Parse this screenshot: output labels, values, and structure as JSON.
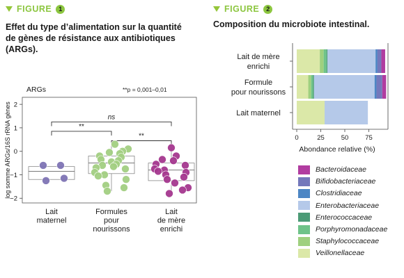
{
  "figure1": {
    "label": "FIGURE",
    "number": "1",
    "title_lines": [
      "Effet du type d’alimentation sur la quantité",
      "de gènes de résistance aux antibiotiques",
      "(ARGs)."
    ]
  },
  "figure2": {
    "label": "FIGURE",
    "number": "2",
    "title": "Composition du microbiote intestinal."
  },
  "colors": {
    "accent_green": "#8cc63f",
    "maternal": "#7f74b5",
    "formula": "#a3cf82",
    "enriched": "#a5378f",
    "Bacteroidaceae": "#b13ca0",
    "Bifidobacteriaceae": "#7478bb",
    "Clostridiaceae": "#4d86c4",
    "Enterobacteriaceae": "#b5c9e9",
    "Enterococcaceae": "#4c9b76",
    "Porphyromonadaceae": "#6fc389",
    "Staphylococcaceae": "#9fd07f",
    "Veillonellaceae": "#dbe8a8"
  },
  "chart_data": [
    {
      "type": "scatter",
      "subtitle": "ARGs",
      "ylabel": "log somme ARGs/16S rRNA gènes",
      "ylim": [
        -2.2,
        2.3
      ],
      "yticks": [
        -2,
        -1,
        0,
        1,
        2
      ],
      "annotation": "**p = 0,001–0,01",
      "groups": [
        {
          "name_lines": [
            "Lait",
            "maternel"
          ],
          "color_key": "maternal",
          "box": {
            "q1": -1.2,
            "median": -0.85,
            "q3": -0.65,
            "whisker_low": -1.2,
            "whisker_high": -0.65
          },
          "points": [
            -1.25,
            -0.6,
            -0.6,
            -1.15
          ]
        },
        {
          "name_lines": [
            "Formules",
            "pour",
            "nourissons"
          ],
          "color_key": "formula",
          "box": {
            "q1": -0.95,
            "median": -0.5,
            "q3": -0.2,
            "whisker_low": -1.7,
            "whisker_high": 0.3
          },
          "points": [
            0.3,
            0.1,
            0.0,
            -0.05,
            -0.1,
            -0.2,
            -0.25,
            -0.35,
            -0.4,
            -0.45,
            -0.55,
            -0.6,
            -0.65,
            -0.7,
            -0.75,
            -0.9,
            -1.0,
            -1.05,
            -1.2,
            -1.45,
            -1.55,
            -1.7
          ]
        },
        {
          "name_lines": [
            "Lait",
            "de mère",
            "enrichi"
          ],
          "color_key": "enriched",
          "box": {
            "q1": -1.25,
            "median": -0.8,
            "q3": -0.5,
            "whisker_low": -1.75,
            "whisker_high": 0.15
          },
          "points": [
            0.15,
            -0.2,
            -0.35,
            -0.4,
            -0.55,
            -0.6,
            -0.75,
            -0.8,
            -0.85,
            -0.9,
            -1.0,
            -1.1,
            -1.2,
            -1.35,
            -1.55,
            -1.65,
            -1.8
          ]
        }
      ],
      "comparisons": [
        {
          "from": 0,
          "to": 2,
          "label": "ns",
          "level": 1.25
        },
        {
          "from": 0,
          "to": 1,
          "label": "**",
          "level": 0.85
        },
        {
          "from": 1,
          "to": 2,
          "label": "**",
          "level": 0.45
        }
      ]
    },
    {
      "type": "bar",
      "orientation": "horizontal",
      "stacked": true,
      "xlabel": "Abondance relative (%)",
      "xlim": [
        0,
        100
      ],
      "xticks": [
        0,
        25,
        50,
        75
      ],
      "categories": [
        [
          "Lait de mère",
          "enrichi"
        ],
        [
          "Formule",
          "pour nourissons"
        ],
        [
          "Lait maternel"
        ]
      ],
      "series": [
        {
          "name": "Veillonellaceae",
          "values": [
            24,
            12,
            29
          ]
        },
        {
          "name": "Staphylococcaceae",
          "values": [
            4,
            3,
            0
          ]
        },
        {
          "name": "Porphyromonadaceae",
          "values": [
            3,
            2,
            0
          ]
        },
        {
          "name": "Enterococcaceae",
          "values": [
            1,
            1,
            0
          ]
        },
        {
          "name": "Enterobacteriaceae",
          "values": [
            50,
            63,
            45
          ]
        },
        {
          "name": "Clostridiaceae",
          "values": [
            2,
            2,
            0
          ]
        },
        {
          "name": "Bifidobacteriaceae",
          "values": [
            4,
            6,
            0
          ]
        },
        {
          "name": "Bacteroidaceae",
          "values": [
            4,
            4,
            0
          ]
        }
      ],
      "legend": [
        "Bacteroidaceae",
        "Bifidobacteriaceae",
        "Clostridiaceae",
        "Enterobacteriaceae",
        "Enterococcaceae",
        "Porphyromonadaceae",
        "Staphylococcaceae",
        "Veillonellaceae"
      ]
    }
  ]
}
